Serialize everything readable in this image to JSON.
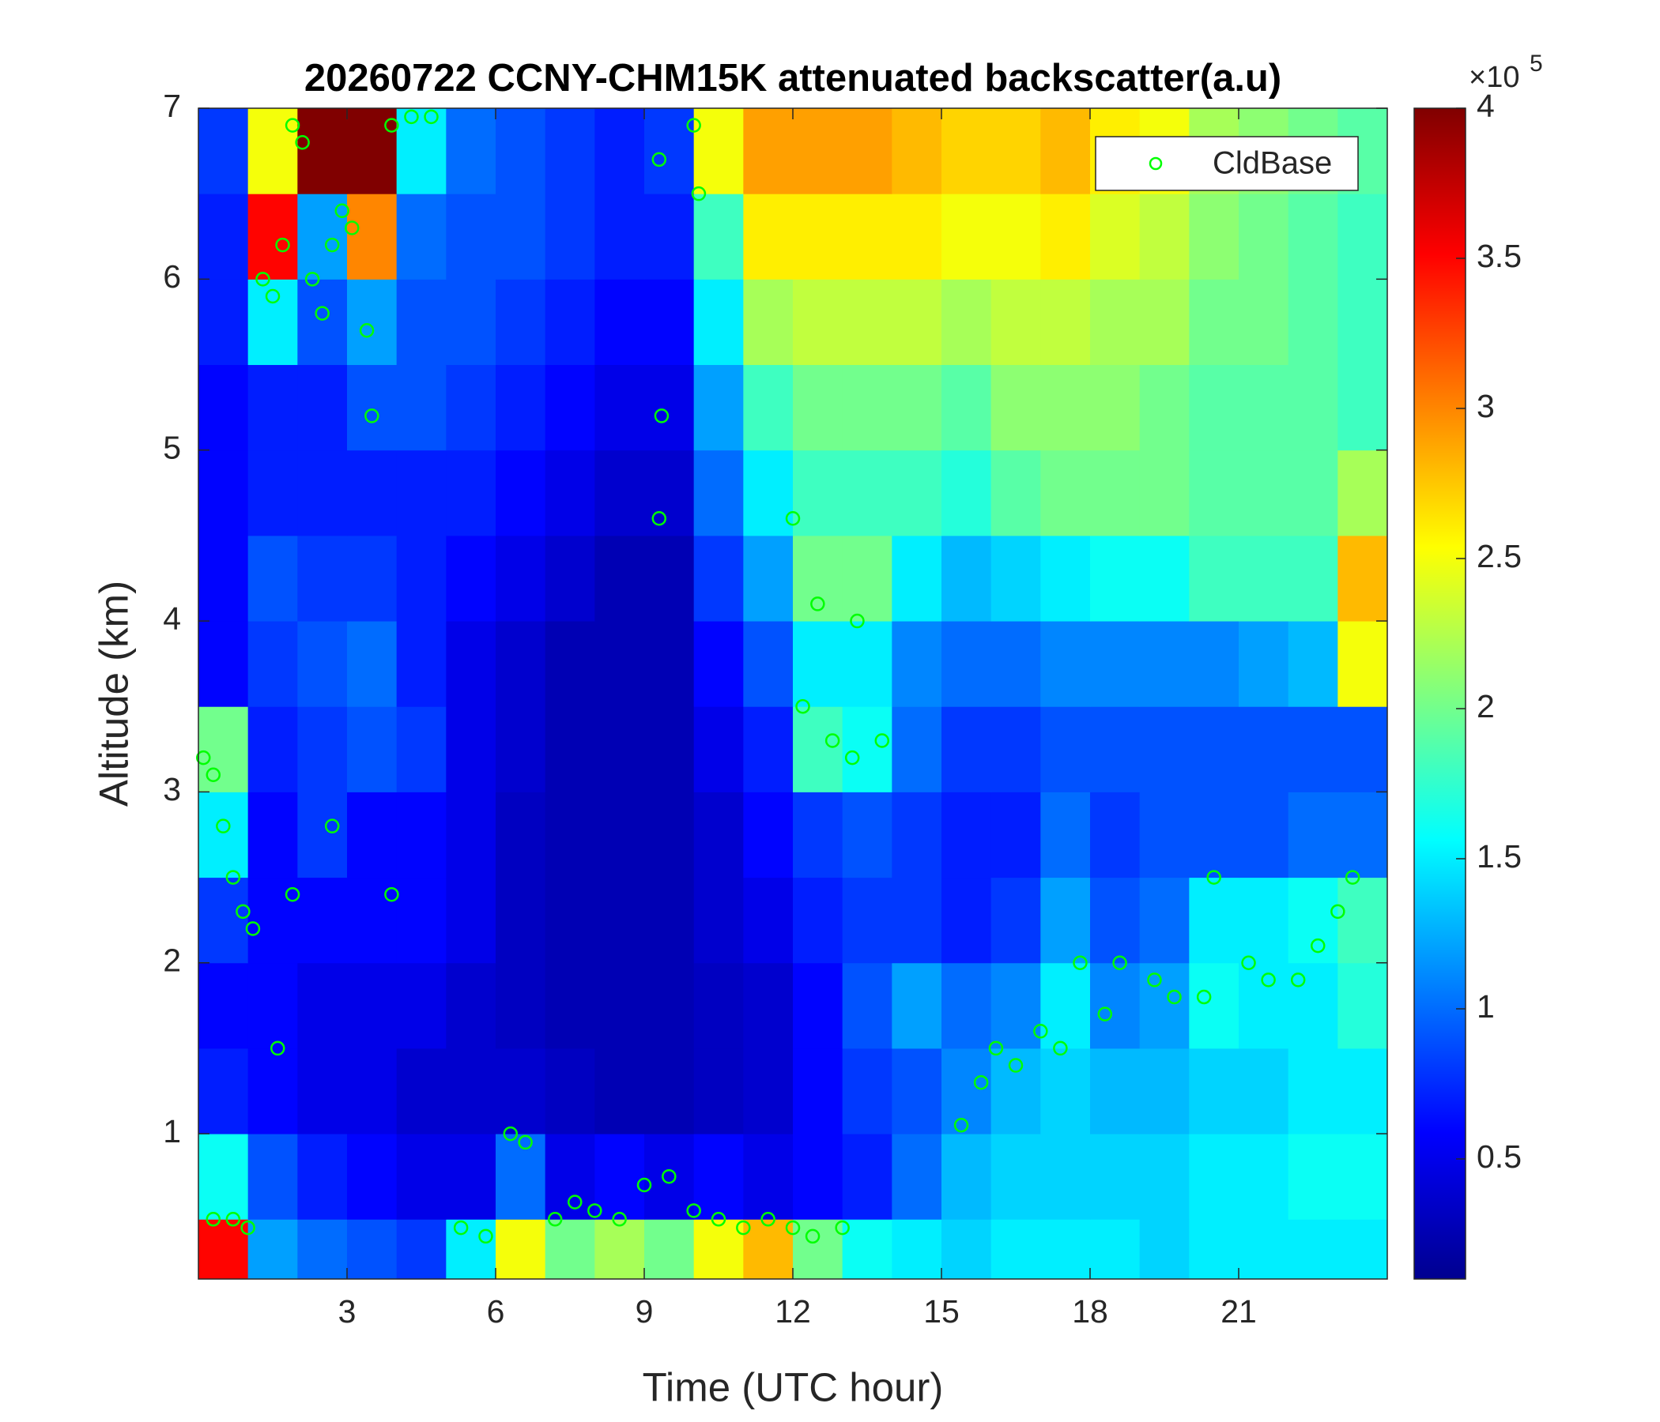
{
  "chart_data": {
    "type": "heatmap",
    "title": "20260722 CCNY-CHM15K attenuated backscatter(a.u)",
    "x_label": "Time (UTC hour)",
    "y_label": "Altitude (km)",
    "xlim": [
      0,
      24
    ],
    "ylim": [
      0.15,
      7
    ],
    "xticks": [
      3,
      6,
      9,
      12,
      15,
      18,
      21
    ],
    "yticks": [
      1,
      2,
      3,
      4,
      5,
      6,
      7
    ],
    "x_edges": [
      0,
      1,
      2,
      3,
      4,
      5,
      6,
      7,
      8,
      9,
      10,
      11,
      12,
      13,
      14,
      15,
      16,
      17,
      18,
      19,
      20,
      21,
      22,
      23,
      24
    ],
    "y_edges": [
      0.15,
      0.5,
      1,
      1.5,
      2,
      2.5,
      3,
      3.5,
      4,
      4.5,
      5,
      5.5,
      6,
      6.5,
      7
    ],
    "colormap": "jet",
    "clim": [
      0.1,
      4
    ],
    "cticks": [
      0.5,
      1,
      1.5,
      2,
      2.5,
      3,
      3.5,
      4
    ],
    "cbar_scale_label": "×10",
    "cbar_scale_exponent": "5",
    "z": [
      [
        3.5,
        1.2,
        1.0,
        0.9,
        0.8,
        1.5,
        2.5,
        2.0,
        2.2,
        2.0,
        2.5,
        2.8,
        2.0,
        1.6,
        1.5,
        1.4,
        1.5,
        1.5,
        1.5,
        1.4,
        1.5,
        1.5,
        1.5,
        1.5
      ],
      [
        1.6,
        0.9,
        0.7,
        0.6,
        0.5,
        0.5,
        1.0,
        0.5,
        0.6,
        0.5,
        0.6,
        0.5,
        0.6,
        0.7,
        1.0,
        1.3,
        1.4,
        1.4,
        1.4,
        1.4,
        1.5,
        1.5,
        1.6,
        1.6
      ],
      [
        0.7,
        0.6,
        0.5,
        0.5,
        0.4,
        0.4,
        0.4,
        0.35,
        0.3,
        0.3,
        0.35,
        0.4,
        0.6,
        0.8,
        0.9,
        1.1,
        1.3,
        1.4,
        1.3,
        1.3,
        1.4,
        1.4,
        1.5,
        1.5
      ],
      [
        0.6,
        0.6,
        0.5,
        0.5,
        0.5,
        0.4,
        0.35,
        0.3,
        0.3,
        0.3,
        0.35,
        0.4,
        0.6,
        0.9,
        1.2,
        1.0,
        1.1,
        1.5,
        1.1,
        1.2,
        1.6,
        1.5,
        1.5,
        1.7
      ],
      [
        0.8,
        0.6,
        0.6,
        0.6,
        0.6,
        0.5,
        0.35,
        0.3,
        0.3,
        0.3,
        0.4,
        0.5,
        0.7,
        0.8,
        0.8,
        0.7,
        0.8,
        1.2,
        0.9,
        1.0,
        1.5,
        1.5,
        1.6,
        1.8
      ],
      [
        1.5,
        0.6,
        0.8,
        0.6,
        0.6,
        0.5,
        0.35,
        0.3,
        0.3,
        0.3,
        0.4,
        0.6,
        0.8,
        0.9,
        0.8,
        0.7,
        0.7,
        1.0,
        0.8,
        0.9,
        0.9,
        0.9,
        1.0,
        1.0
      ],
      [
        2.0,
        0.7,
        0.8,
        0.9,
        0.8,
        0.5,
        0.4,
        0.3,
        0.3,
        0.3,
        0.5,
        0.7,
        1.8,
        1.6,
        1.0,
        0.8,
        0.8,
        0.9,
        0.9,
        0.9,
        0.9,
        0.9,
        0.9,
        0.9
      ],
      [
        0.6,
        0.8,
        0.9,
        1.0,
        0.7,
        0.5,
        0.4,
        0.3,
        0.3,
        0.3,
        0.6,
        0.9,
        1.5,
        1.5,
        1.1,
        1.0,
        1.0,
        1.1,
        1.1,
        1.1,
        1.1,
        1.2,
        1.3,
        2.5
      ],
      [
        0.6,
        0.9,
        0.8,
        0.8,
        0.7,
        0.6,
        0.5,
        0.4,
        0.3,
        0.3,
        0.8,
        1.2,
        2.0,
        2.0,
        1.5,
        1.3,
        1.4,
        1.5,
        1.6,
        1.6,
        1.8,
        1.8,
        1.8,
        2.8
      ],
      [
        0.6,
        0.7,
        0.7,
        0.7,
        0.7,
        0.7,
        0.6,
        0.5,
        0.4,
        0.4,
        1.0,
        1.5,
        1.8,
        1.8,
        1.8,
        1.7,
        1.9,
        2.0,
        2.0,
        2.0,
        1.9,
        1.9,
        1.9,
        2.2
      ],
      [
        0.6,
        0.7,
        0.7,
        0.9,
        0.9,
        0.8,
        0.7,
        0.6,
        0.5,
        0.5,
        1.2,
        1.8,
        2.0,
        2.0,
        2.0,
        1.9,
        2.1,
        2.1,
        2.1,
        2.0,
        1.9,
        1.9,
        1.9,
        1.8
      ],
      [
        0.7,
        1.5,
        0.9,
        1.2,
        0.9,
        0.9,
        0.8,
        0.7,
        0.6,
        0.6,
        1.5,
        2.2,
        2.3,
        2.3,
        2.3,
        2.2,
        2.3,
        2.3,
        2.2,
        2.2,
        2.0,
        2.0,
        1.9,
        1.8
      ],
      [
        0.7,
        3.5,
        1.2,
        3.0,
        1.0,
        0.9,
        0.9,
        0.8,
        0.7,
        0.7,
        1.8,
        2.6,
        2.6,
        2.6,
        2.6,
        2.5,
        2.5,
        2.6,
        2.4,
        2.3,
        2.1,
        2.0,
        1.9,
        1.8
      ],
      [
        0.8,
        2.5,
        4.0,
        4.0,
        1.5,
        1.0,
        0.9,
        0.8,
        0.7,
        0.8,
        2.5,
        2.9,
        2.9,
        2.9,
        2.8,
        2.7,
        2.7,
        2.8,
        2.6,
        2.5,
        2.2,
        2.1,
        2.0,
        1.9
      ]
    ],
    "scatter": {
      "name": "CldBase",
      "color": "#00ff00",
      "x": [
        0.1,
        0.3,
        0.5,
        0.7,
        0.9,
        1.1,
        1.3,
        1.5,
        1.7,
        1.9,
        2.1,
        1.9,
        2.3,
        2.5,
        2.7,
        2.9,
        3.1,
        3.4,
        3.5,
        3.9,
        4.3,
        4.7,
        3.9,
        2.7,
        0.3,
        0.7,
        1.0,
        1.6,
        5.3,
        5.8,
        6.3,
        6.6,
        7.2,
        7.6,
        8.0,
        8.5,
        9.0,
        9.5,
        10.0,
        10.5,
        11.0,
        11.5,
        12.0,
        12.4,
        13.0,
        9.3,
        9.35,
        9.3,
        10.1,
        10.0,
        12.0,
        12.2,
        12.5,
        12.8,
        13.2,
        13.3,
        13.8,
        15.4,
        15.8,
        16.1,
        16.5,
        17.0,
        17.4,
        17.8,
        18.3,
        18.6,
        19.3,
        19.7,
        20.3,
        20.5,
        21.2,
        21.6,
        22.2,
        22.6,
        23.0,
        23.3
      ],
      "y": [
        3.2,
        3.1,
        2.8,
        2.5,
        2.3,
        2.2,
        6.0,
        5.9,
        6.2,
        6.9,
        6.8,
        2.4,
        6.0,
        5.8,
        6.2,
        6.4,
        6.3,
        5.7,
        5.2,
        6.9,
        6.95,
        6.95,
        2.4,
        2.8,
        0.5,
        0.5,
        0.45,
        1.5,
        0.45,
        0.4,
        1.0,
        0.95,
        0.5,
        0.6,
        0.55,
        0.5,
        0.7,
        0.75,
        0.55,
        0.5,
        0.45,
        0.5,
        0.45,
        0.4,
        0.45,
        4.6,
        5.2,
        6.7,
        6.5,
        6.9,
        4.6,
        3.5,
        4.1,
        3.3,
        3.2,
        4.0,
        3.3,
        1.05,
        1.3,
        1.5,
        1.4,
        1.6,
        1.5,
        2.0,
        1.7,
        2.0,
        1.9,
        1.8,
        1.8,
        2.5,
        2.0,
        1.9,
        1.9,
        2.1,
        2.3,
        2.5
      ]
    },
    "legend": "northeast"
  }
}
